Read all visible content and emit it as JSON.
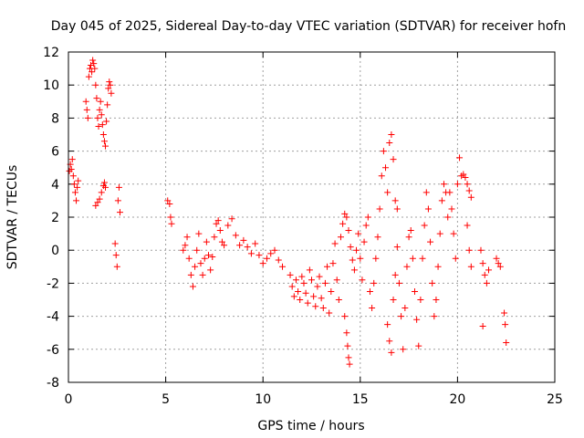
{
  "chart_data": {
    "type": "scatter",
    "title": "Day 045 of 2025, Sidereal Day-to-day VTEC variation (SDTVAR) for receiver hofn",
    "xlabel": "GPS time / hours",
    "ylabel": "SDTVAR / TECUs",
    "xlim": [
      0,
      25
    ],
    "ylim": [
      -8,
      12
    ],
    "xticks": [
      0,
      5,
      10,
      15,
      20,
      25
    ],
    "yticks": [
      -8,
      -6,
      -4,
      -2,
      0,
      2,
      4,
      6,
      8,
      10,
      12
    ],
    "grid": true,
    "marker": "+",
    "color": "#ff0000",
    "series": [
      {
        "name": "SDTVAR",
        "x": [
          0.05,
          0.1,
          0.15,
          0.2,
          0.25,
          0.3,
          0.35,
          0.4,
          0.45,
          0.5,
          0.9,
          0.95,
          1.0,
          1.05,
          1.1,
          1.15,
          1.2,
          1.25,
          1.3,
          1.35,
          1.4,
          1.45,
          1.5,
          1.55,
          1.6,
          1.65,
          1.7,
          1.75,
          1.8,
          1.85,
          1.9,
          1.95,
          2.0,
          2.05,
          2.1,
          2.15,
          2.2,
          1.4,
          1.5,
          1.6,
          1.7,
          1.8,
          1.85,
          1.9,
          2.4,
          2.45,
          2.5,
          2.55,
          2.6,
          2.65,
          5.1,
          5.2,
          5.25,
          5.3,
          5.9,
          6.0,
          6.1,
          6.2,
          6.3,
          6.4,
          6.5,
          6.6,
          6.7,
          6.8,
          6.9,
          7.0,
          7.1,
          7.2,
          7.3,
          7.4,
          7.5,
          7.6,
          7.7,
          7.8,
          7.9,
          8.0,
          8.2,
          8.4,
          8.6,
          8.8,
          9.0,
          9.2,
          9.4,
          9.6,
          9.8,
          10.0,
          10.2,
          10.4,
          10.6,
          10.8,
          11.0,
          11.4,
          11.5,
          11.6,
          11.7,
          11.8,
          11.9,
          12.0,
          12.1,
          12.2,
          12.3,
          12.4,
          12.5,
          12.6,
          12.7,
          12.8,
          12.9,
          13.0,
          13.1,
          13.2,
          13.3,
          13.4,
          13.5,
          13.6,
          13.7,
          13.8,
          13.9,
          14.0,
          14.1,
          14.2,
          14.3,
          14.4,
          14.5,
          14.6,
          14.2,
          14.3,
          14.35,
          14.4,
          14.45,
          14.7,
          14.8,
          14.9,
          15.0,
          15.1,
          15.2,
          15.3,
          15.4,
          15.5,
          15.6,
          15.7,
          15.8,
          15.9,
          16.0,
          16.1,
          16.2,
          16.3,
          16.4,
          16.5,
          16.6,
          16.7,
          16.8,
          16.9,
          16.4,
          16.5,
          16.6,
          16.7,
          16.8,
          16.9,
          17.0,
          17.1,
          17.2,
          17.3,
          17.4,
          17.5,
          17.6,
          17.7,
          17.8,
          17.9,
          18.0,
          18.1,
          18.2,
          18.3,
          18.4,
          18.5,
          18.6,
          18.7,
          18.8,
          18.9,
          19.0,
          19.1,
          19.2,
          19.3,
          19.4,
          19.5,
          19.6,
          19.7,
          19.8,
          19.9,
          20.0,
          20.1,
          20.2,
          20.3,
          20.4,
          20.5,
          20.6,
          20.7,
          20.5,
          20.6,
          20.7,
          21.2,
          21.3,
          21.4,
          21.5,
          21.6,
          21.3,
          22.0,
          22.1,
          22.2,
          22.4,
          22.45,
          22.5
        ],
        "y": [
          4.8,
          5.2,
          4.9,
          5.5,
          4.5,
          4.0,
          3.5,
          3.0,
          3.8,
          4.2,
          9.0,
          8.5,
          8.0,
          10.5,
          11.0,
          11.2,
          10.8,
          11.5,
          11.3,
          11.0,
          10.0,
          9.2,
          8.0,
          7.5,
          8.5,
          9.0,
          8.2,
          7.6,
          7.0,
          6.6,
          6.3,
          7.8,
          8.8,
          9.8,
          10.2,
          10.0,
          9.5,
          2.7,
          2.9,
          3.1,
          3.5,
          3.9,
          4.1,
          3.8,
          0.4,
          -0.3,
          -1.0,
          3.0,
          3.8,
          2.3,
          3.0,
          2.8,
          2.0,
          1.6,
          0.0,
          0.3,
          0.8,
          -0.5,
          -1.5,
          -2.2,
          -1.0,
          0.0,
          1.0,
          -0.8,
          -1.5,
          -0.5,
          0.5,
          -0.3,
          -1.2,
          -0.4,
          0.8,
          1.6,
          1.8,
          1.2,
          0.5,
          0.3,
          1.5,
          1.9,
          0.9,
          0.3,
          0.6,
          0.2,
          -0.2,
          0.4,
          -0.3,
          -0.8,
          -0.5,
          -0.2,
          0.0,
          -0.6,
          -1.0,
          -1.5,
          -2.2,
          -2.8,
          -1.8,
          -2.5,
          -3.0,
          -1.6,
          -2.0,
          -2.6,
          -3.2,
          -1.2,
          -1.8,
          -2.8,
          -3.4,
          -2.2,
          -1.6,
          -2.9,
          -3.5,
          -2.0,
          -1.0,
          -3.8,
          -2.5,
          -0.8,
          0.4,
          -1.8,
          -3.0,
          0.8,
          1.6,
          2.2,
          2.0,
          1.2,
          0.2,
          -0.6,
          -4.0,
          -5.0,
          -5.8,
          -6.5,
          -6.9,
          -1.2,
          0.0,
          1.0,
          -0.5,
          -1.8,
          0.5,
          1.5,
          2.0,
          -2.5,
          -3.5,
          -2.0,
          -0.5,
          0.8,
          2.5,
          4.5,
          6.0,
          5.0,
          3.5,
          6.5,
          7.0,
          5.5,
          3.0,
          2.5,
          -4.5,
          -5.5,
          -6.2,
          -3.0,
          -1.5,
          0.2,
          -2.0,
          -4.0,
          -6.0,
          -3.5,
          -1.0,
          0.8,
          1.2,
          -0.5,
          -2.5,
          -4.2,
          -5.8,
          -3.0,
          -0.5,
          1.5,
          3.5,
          2.5,
          0.5,
          -2.0,
          -4.0,
          -3.0,
          -1.0,
          1.0,
          3.0,
          4.0,
          3.5,
          2.0,
          3.5,
          2.5,
          1.0,
          -0.5,
          4.0,
          5.6,
          4.5,
          4.6,
          4.4,
          4.0,
          3.6,
          3.2,
          1.5,
          0.0,
          -1.0,
          0.0,
          -0.8,
          -1.5,
          -2.0,
          -1.2,
          -4.6,
          -0.5,
          -0.8,
          -1.0,
          -3.8,
          -4.5,
          -5.6
        ]
      }
    ]
  }
}
